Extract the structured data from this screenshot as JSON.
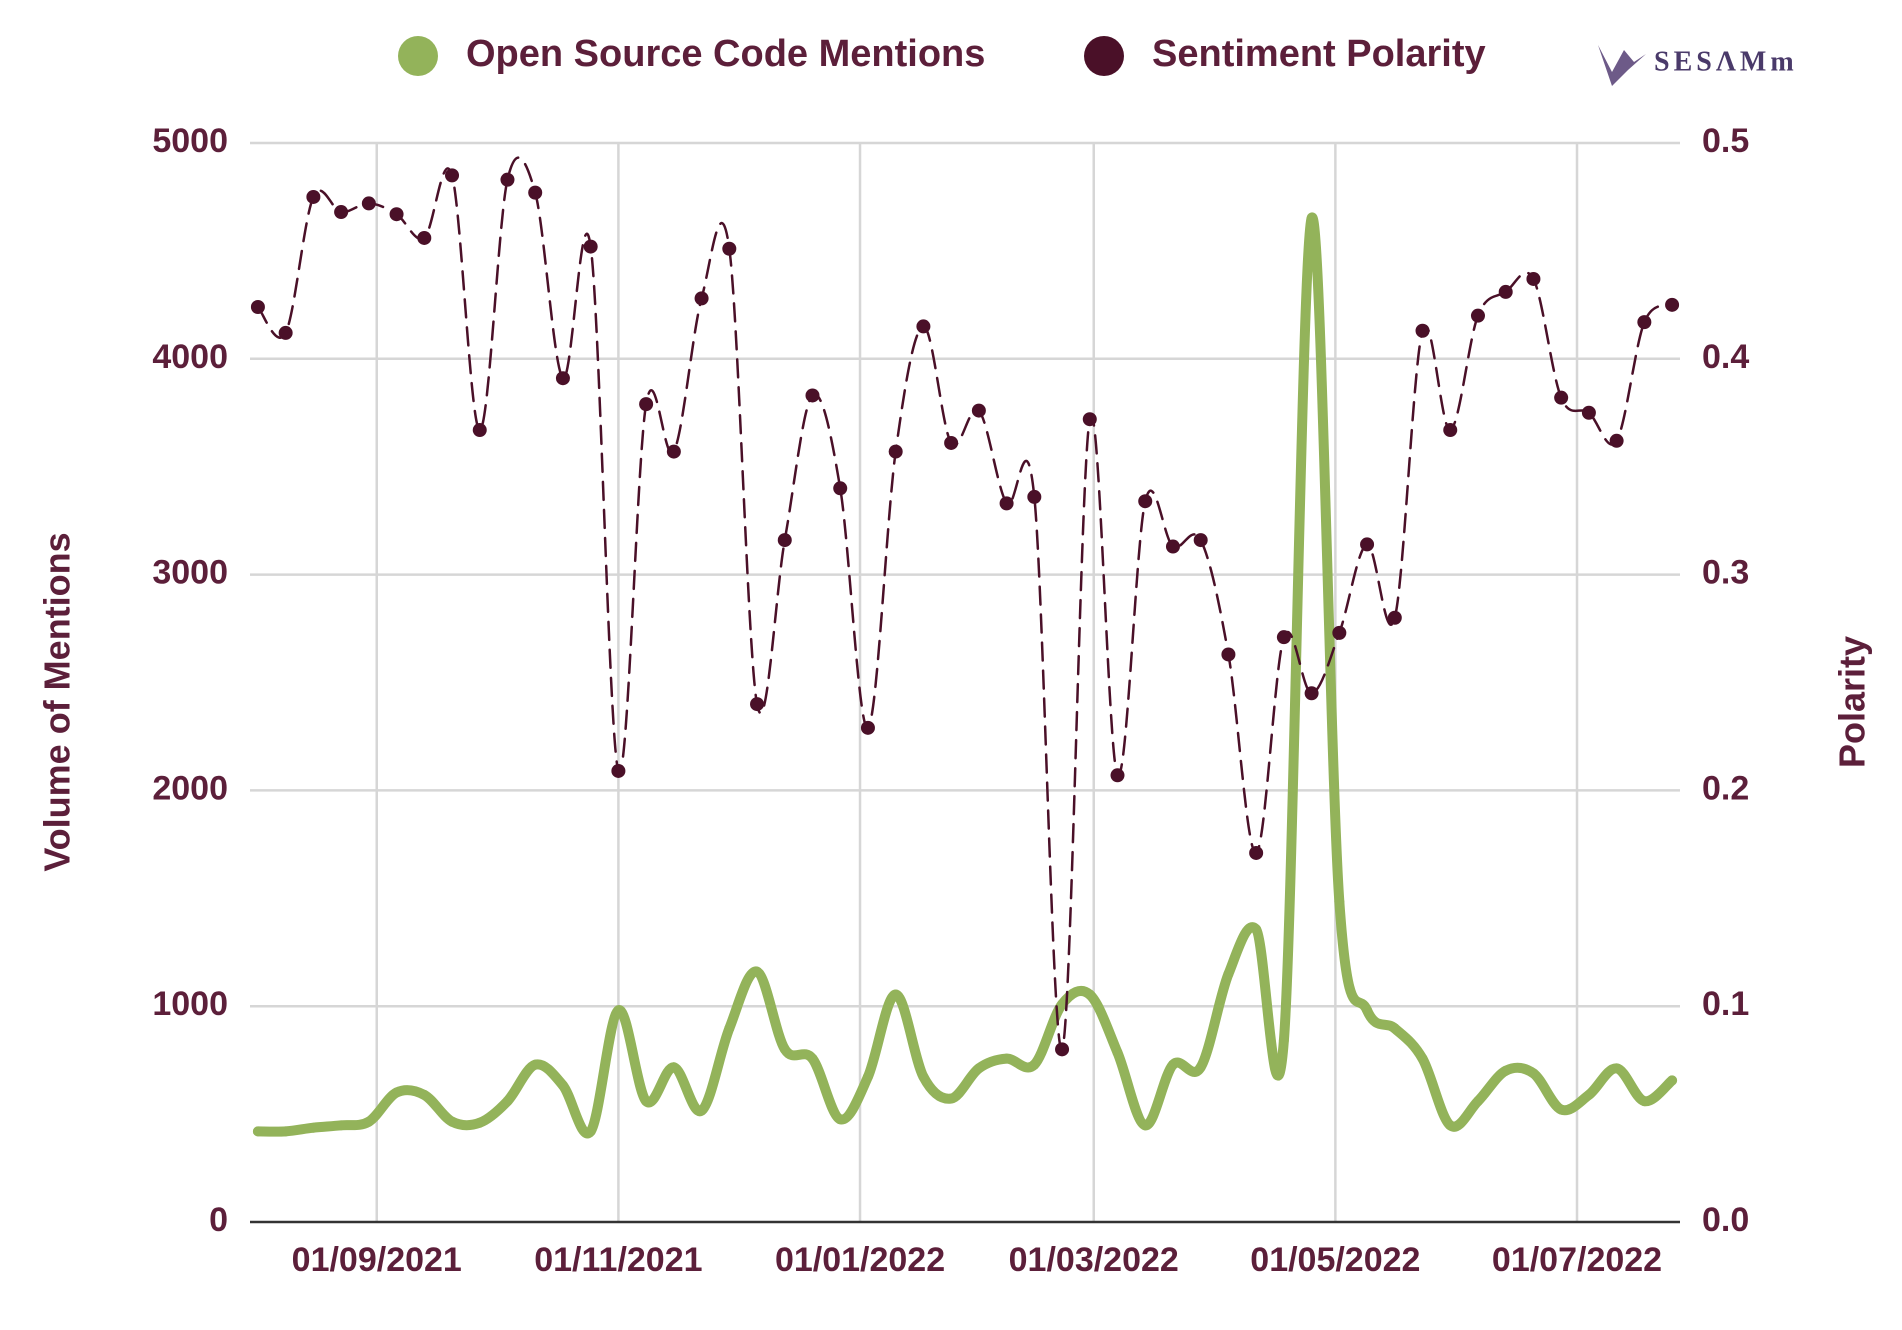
{
  "logo": "SESΛMm",
  "chart_data": {
    "type": "line",
    "y_label": "Volume of Mentions",
    "y2_label": "Polarity",
    "x": [
      "2021-08-02",
      "2021-08-09",
      "2021-08-16",
      "2021-08-23",
      "2021-08-30",
      "2021-09-06",
      "2021-09-13",
      "2021-09-20",
      "2021-09-27",
      "2021-10-04",
      "2021-10-11",
      "2021-10-18",
      "2021-10-25",
      "2021-11-01",
      "2021-11-08",
      "2021-11-15",
      "2021-11-22",
      "2021-11-29",
      "2021-12-06",
      "2021-12-13",
      "2021-12-20",
      "2021-12-27",
      "2022-01-03",
      "2022-01-10",
      "2022-01-17",
      "2022-01-24",
      "2022-01-31",
      "2022-02-07",
      "2022-02-14",
      "2022-02-21",
      "2022-02-28",
      "2022-03-07",
      "2022-03-14",
      "2022-03-21",
      "2022-03-28",
      "2022-04-04",
      "2022-04-11",
      "2022-04-18",
      "2022-04-25",
      "2022-05-02",
      "2022-05-09",
      "2022-05-16",
      "2022-05-23",
      "2022-05-30",
      "2022-06-06",
      "2022-06-13",
      "2022-06-20",
      "2022-06-27",
      "2022-07-04",
      "2022-07-11",
      "2022-07-18",
      "2022-07-25"
    ],
    "series": [
      {
        "name": "Open Source Code Mentions",
        "color": "#93b35a",
        "axis": "y",
        "values": [
          420,
          420,
          437,
          448,
          465,
          600,
          589,
          465,
          460,
          560,
          729,
          633,
          420,
          981,
          560,
          717,
          516,
          897,
          1160,
          801,
          757,
          476,
          673,
          1054,
          673,
          572,
          712,
          757,
          729,
          1009,
          1054,
          785,
          448,
          729,
          717,
          1149,
          1356,
          841,
          4652,
          1485,
          981,
          897,
          757,
          448,
          560,
          701,
          689,
          521,
          589,
          712,
          560,
          656
        ]
      },
      {
        "name": "Sentiment Polarity",
        "color": "#4a1028",
        "axis": "y2",
        "values": [
          0.424,
          0.412,
          0.475,
          0.468,
          0.472,
          0.467,
          0.456,
          0.485,
          0.367,
          0.483,
          0.477,
          0.391,
          0.452,
          0.209,
          0.379,
          0.357,
          0.428,
          0.451,
          0.24,
          0.316,
          0.383,
          0.34,
          0.229,
          0.357,
          0.415,
          0.361,
          0.376,
          0.333,
          0.336,
          0.08,
          0.372,
          0.207,
          0.334,
          0.313,
          0.316,
          0.263,
          0.171,
          0.271,
          0.245,
          0.273,
          0.314,
          0.28,
          0.413,
          0.367,
          0.42,
          0.431,
          0.437,
          0.382,
          0.375,
          0.362,
          0.417,
          0.425
        ]
      }
    ],
    "xlim": [
      "2021-07-31",
      "2022-07-27"
    ],
    "xticks": [
      {
        "value": "2021-09-01",
        "label": "01/09/2021"
      },
      {
        "value": "2021-11-01",
        "label": "01/11/2021"
      },
      {
        "value": "2022-01-01",
        "label": "01/01/2022"
      },
      {
        "value": "2022-03-01",
        "label": "01/03/2022"
      },
      {
        "value": "2022-05-01",
        "label": "01/05/2022"
      },
      {
        "value": "2022-07-01",
        "label": "01/07/2022"
      }
    ],
    "ylim": [
      0,
      5000
    ],
    "yticks": [
      0,
      1000,
      2000,
      3000,
      4000,
      5000
    ],
    "y2lim": [
      0,
      0.5
    ],
    "y2ticks": [
      {
        "value": 0,
        "label": "0.0"
      },
      0.1,
      0.2,
      0.3,
      0.4,
      0.5
    ],
    "grid": true,
    "legend": "top"
  }
}
